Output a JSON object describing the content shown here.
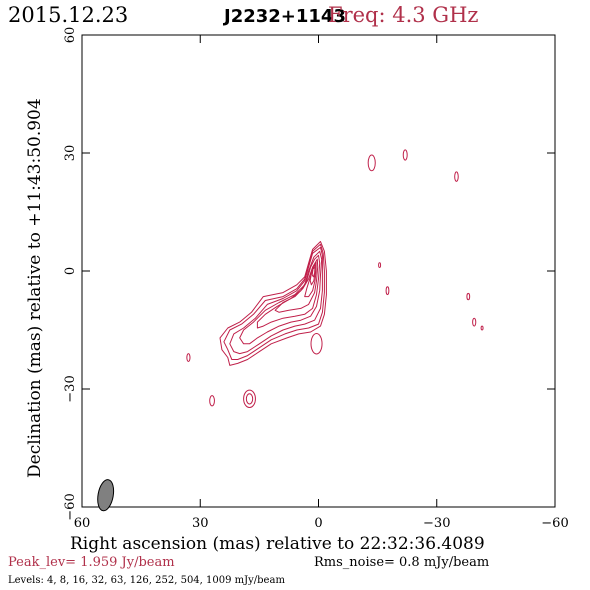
{
  "header": {
    "date": "2015.12.23",
    "source": "J2232+1143",
    "frequency": "Freq: 4.3 GHz"
  },
  "footer": {
    "peak": "Peak_lev=  1.959 Jy/beam",
    "rms": "Rms_noise=  0.8 mJy/beam",
    "levels": "Levels:  4,  8,  16,  32,  63,  126,  252,  504,  1009 mJy/beam"
  },
  "colors": {
    "contour": "#c0204a",
    "axis": "#000000",
    "beam_fill": "#808080"
  },
  "chart_data": {
    "type": "contour",
    "title": "J2232+1143",
    "xlabel": "Right ascension (mas) relative to 22:32:36.4089",
    "ylabel": "Declination (mas) relative to +11:43:50.904",
    "xlim": [
      60,
      -60
    ],
    "ylim": [
      -60,
      60
    ],
    "xticks": [
      60,
      30,
      0,
      -30,
      -60
    ],
    "yticks": [
      -60,
      -30,
      0,
      30,
      60
    ],
    "xtick_labels": [
      "60",
      "30",
      "0",
      "−30",
      "−60"
    ],
    "ytick_labels": [
      "−60",
      "−30",
      "0",
      "30",
      "60"
    ],
    "contour_levels_mJy": [
      4,
      8,
      16,
      32,
      63,
      126,
      252,
      504,
      1009
    ],
    "peak_Jy_per_beam": 1.959,
    "rms_mJy_per_beam": 0.8,
    "core": {
      "x": 0,
      "y": 0
    },
    "beam": {
      "x": 54,
      "y": -57,
      "major": 5,
      "minor": 2.4,
      "pa_deg": 10
    },
    "main_contours": [
      [
        [
          -0.5,
          7.5
        ],
        [
          -1.5,
          5.0
        ],
        [
          -2.0,
          0.0
        ],
        [
          -2.0,
          -6.0
        ],
        [
          -1.5,
          -11.0
        ],
        [
          -0.5,
          -14.0
        ],
        [
          2.0,
          -15.5
        ],
        [
          5.0,
          -16.0
        ],
        [
          8.0,
          -17.0
        ],
        [
          12.0,
          -18.5
        ],
        [
          15.0,
          -20.5
        ],
        [
          18.0,
          -22.5
        ],
        [
          20.5,
          -23.5
        ],
        [
          22.5,
          -24.0
        ],
        [
          23.0,
          -22.0
        ],
        [
          24.5,
          -20.0
        ],
        [
          25.0,
          -17.0
        ],
        [
          23.0,
          -14.5
        ],
        [
          20.0,
          -13.0
        ],
        [
          17.0,
          -10.5
        ],
        [
          14.0,
          -6.5
        ],
        [
          9.0,
          -5.5
        ],
        [
          5.5,
          -3.5
        ],
        [
          3.5,
          -1.5
        ],
        [
          2.5,
          2.0
        ],
        [
          1.5,
          5.5
        ],
        [
          -0.5,
          7.5
        ]
      ],
      [
        [
          -0.5,
          6.8
        ],
        [
          -1.2,
          4.5
        ],
        [
          -1.5,
          0.0
        ],
        [
          -1.5,
          -5.5
        ],
        [
          -1.0,
          -10.5
        ],
        [
          0.0,
          -13.5
        ],
        [
          2.5,
          -14.5
        ],
        [
          5.5,
          -15.0
        ],
        [
          8.5,
          -16.0
        ],
        [
          12.0,
          -17.5
        ],
        [
          15.0,
          -19.5
        ],
        [
          18.0,
          -21.5
        ],
        [
          20.5,
          -22.5
        ],
        [
          22.0,
          -22.5
        ],
        [
          23.0,
          -20.0
        ],
        [
          24.0,
          -18.0
        ],
        [
          22.5,
          -15.0
        ],
        [
          19.5,
          -13.5
        ],
        [
          16.5,
          -11.0
        ],
        [
          13.5,
          -7.5
        ],
        [
          9.0,
          -6.5
        ],
        [
          5.5,
          -4.5
        ],
        [
          3.5,
          -2.0
        ],
        [
          2.5,
          1.5
        ],
        [
          1.5,
          5.0
        ],
        [
          -0.5,
          6.8
        ]
      ],
      [
        [
          -0.5,
          6.0
        ],
        [
          -1.0,
          4.0
        ],
        [
          -1.0,
          0.0
        ],
        [
          -1.0,
          -5.0
        ],
        [
          -0.5,
          -9.5
        ],
        [
          1.0,
          -12.5
        ],
        [
          3.5,
          -13.5
        ],
        [
          6.0,
          -14.0
        ],
        [
          9.0,
          -15.0
        ],
        [
          12.0,
          -16.5
        ],
        [
          15.0,
          -18.5
        ],
        [
          18.0,
          -20.5
        ],
        [
          20.0,
          -21.0
        ],
        [
          21.5,
          -20.5
        ],
        [
          22.5,
          -18.5
        ],
        [
          21.5,
          -16.0
        ],
        [
          19.0,
          -14.5
        ],
        [
          16.0,
          -12.0
        ],
        [
          13.0,
          -8.5
        ],
        [
          9.0,
          -7.0
        ],
        [
          5.5,
          -5.0
        ],
        [
          3.5,
          -2.5
        ],
        [
          2.5,
          1.0
        ],
        [
          1.5,
          4.5
        ],
        [
          -0.5,
          6.0
        ]
      ],
      [
        [
          -0.3,
          5.0
        ],
        [
          -0.8,
          3.0
        ],
        [
          -0.5,
          -1.0
        ],
        [
          -0.3,
          -5.0
        ],
        [
          0.5,
          -9.0
        ],
        [
          2.0,
          -11.5
        ],
        [
          4.5,
          -12.5
        ],
        [
          7.0,
          -13.0
        ],
        [
          10.0,
          -14.0
        ],
        [
          13.0,
          -15.5
        ],
        [
          15.5,
          -17.0
        ],
        [
          17.5,
          -18.5
        ],
        [
          19.0,
          -18.5
        ],
        [
          20.0,
          -17.0
        ],
        [
          19.0,
          -15.0
        ],
        [
          16.5,
          -13.0
        ],
        [
          13.5,
          -10.0
        ],
        [
          10.0,
          -8.0
        ],
        [
          6.0,
          -6.0
        ],
        [
          3.5,
          -3.5
        ],
        [
          2.5,
          0.0
        ],
        [
          1.2,
          3.5
        ],
        [
          -0.3,
          5.0
        ]
      ],
      [
        [
          0.0,
          4.0
        ],
        [
          -0.3,
          2.0
        ],
        [
          0.0,
          -2.0
        ],
        [
          0.5,
          -6.0
        ],
        [
          1.5,
          -9.5
        ],
        [
          3.5,
          -11.0
        ],
        [
          6.0,
          -11.5
        ],
        [
          9.0,
          -12.0
        ],
        [
          12.0,
          -13.0
        ],
        [
          14.0,
          -14.0
        ],
        [
          15.5,
          -14.5
        ],
        [
          15.5,
          -13.0
        ],
        [
          13.5,
          -11.0
        ],
        [
          10.5,
          -9.0
        ],
        [
          7.0,
          -7.0
        ],
        [
          4.5,
          -5.0
        ],
        [
          3.0,
          -2.5
        ],
        [
          2.0,
          1.0
        ],
        [
          1.0,
          3.0
        ],
        [
          0.0,
          4.0
        ]
      ],
      [
        [
          0.3,
          3.0
        ],
        [
          0.2,
          1.0
        ],
        [
          0.5,
          -2.5
        ],
        [
          1.0,
          -5.5
        ],
        [
          2.5,
          -8.5
        ],
        [
          4.5,
          -9.5
        ],
        [
          7.5,
          -10.0
        ],
        [
          10.0,
          -10.5
        ],
        [
          11.0,
          -10.0
        ],
        [
          9.0,
          -8.0
        ],
        [
          6.0,
          -6.5
        ],
        [
          4.0,
          -4.5
        ],
        [
          2.5,
          -2.0
        ],
        [
          1.5,
          1.0
        ],
        [
          0.3,
          3.0
        ]
      ],
      [
        [
          0.6,
          2.2
        ],
        [
          0.6,
          0.0
        ],
        [
          0.9,
          -2.5
        ],
        [
          1.5,
          -5.0
        ],
        [
          2.5,
          -6.5
        ],
        [
          3.5,
          -6.5
        ],
        [
          3.0,
          -4.5
        ],
        [
          2.2,
          -2.0
        ],
        [
          1.5,
          0.5
        ],
        [
          0.6,
          2.2
        ]
      ],
      [
        [
          0.8,
          1.5
        ],
        [
          0.9,
          -0.5
        ],
        [
          1.2,
          -2.5
        ],
        [
          1.8,
          -3.5
        ],
        [
          2.1,
          -2.5
        ],
        [
          1.8,
          -0.5
        ],
        [
          1.4,
          1.0
        ],
        [
          0.8,
          1.5
        ]
      ],
      [
        [
          0.9,
          1.0
        ],
        [
          1.0,
          -0.5
        ],
        [
          1.3,
          -1.5
        ],
        [
          1.6,
          -1.0
        ],
        [
          1.4,
          0.5
        ],
        [
          0.9,
          1.0
        ]
      ]
    ],
    "blobs": [
      {
        "x": 0.5,
        "y": -18.5,
        "rx": 1.4,
        "ry": 2.6
      },
      {
        "x": -13.5,
        "y": 27.5,
        "rx": 0.9,
        "ry": 2.0
      },
      {
        "x": -22,
        "y": 29.5,
        "rx": 0.5,
        "ry": 1.3
      },
      {
        "x": -35,
        "y": 24.0,
        "rx": 0.45,
        "ry": 1.2
      },
      {
        "x": -15.5,
        "y": 1.5,
        "rx": 0.25,
        "ry": 0.6
      },
      {
        "x": -17.5,
        "y": -5.0,
        "rx": 0.35,
        "ry": 1.0
      },
      {
        "x": -38,
        "y": -6.5,
        "rx": 0.35,
        "ry": 0.8
      },
      {
        "x": -39.5,
        "y": -13.0,
        "rx": 0.4,
        "ry": 1.0
      },
      {
        "x": -41.5,
        "y": -14.5,
        "rx": 0.25,
        "ry": 0.5
      },
      {
        "x": 33,
        "y": -22.0,
        "rx": 0.4,
        "ry": 1.0
      },
      {
        "x": 27,
        "y": -33.0,
        "rx": 0.6,
        "ry": 1.3
      },
      {
        "x": 17.5,
        "y": -32.5,
        "rx": 1.5,
        "ry": 2.2
      },
      {
        "x": 17.5,
        "y": -32.5,
        "rx": 0.8,
        "ry": 1.3
      }
    ]
  }
}
